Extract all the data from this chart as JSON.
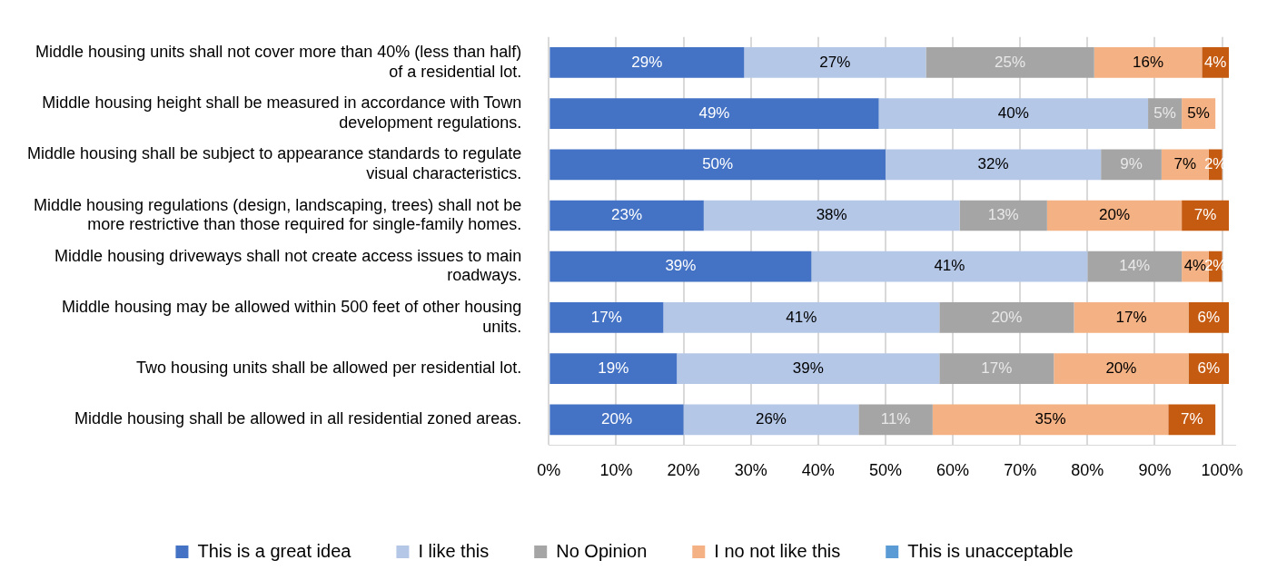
{
  "chart_data": {
    "type": "bar",
    "orientation": "horizontal",
    "stacked": true,
    "legend": "bottom",
    "grid": "x",
    "categories": [
      "Middle housing units shall not cover more than 40% (less than half) of a residential lot.",
      "Middle housing height shall be measured in accordance with Town development regulations.",
      "Middle housing shall be subject to appearance standards to regulate visual characteristics.",
      "Middle housing regulations (design, landscaping, trees) shall not be more restrictive than those required for single-family homes.",
      "Middle housing driveways shall not create access issues to main roadways.",
      "Middle housing may be allowed within 500 feet of other housing units.",
      "Two housing units shall be allowed per residential lot.",
      "Middle housing shall be allowed in all residential zoned areas."
    ],
    "series": [
      {
        "name": "This is a great idea",
        "color": "#4472c4",
        "values": [
          29,
          49,
          50,
          23,
          39,
          17,
          19,
          20
        ],
        "value_labels": [
          "29%",
          "49%",
          "50%",
          "23%",
          "39%",
          "17%",
          "19%",
          "20%"
        ]
      },
      {
        "name": "I like this",
        "color": "#b4c7e7",
        "values": [
          27,
          40,
          32,
          38,
          41,
          41,
          39,
          26
        ],
        "value_labels": [
          "27%",
          "40%",
          "32%",
          "38%",
          "41%",
          "41%",
          "39%",
          "26%"
        ]
      },
      {
        "name": "No Opinion",
        "color": "#a5a5a5",
        "values": [
          25,
          5,
          9,
          13,
          14,
          20,
          17,
          11
        ],
        "value_labels": [
          "25%",
          "5%",
          "9%",
          "13%",
          "14%",
          "20%",
          "17%",
          "11%"
        ]
      },
      {
        "name": "I no not like this",
        "color": "#f4b183",
        "values": [
          16,
          5,
          7,
          20,
          4,
          17,
          20,
          35
        ],
        "value_labels": [
          "16%",
          "5%",
          "7%",
          "20%",
          "4%",
          "17%",
          "20%",
          "35%"
        ]
      },
      {
        "color": "#c55a11",
        "values": [
          4,
          null,
          2,
          7,
          2,
          6,
          6,
          7
        ],
        "value_labels": [
          "4%",
          null,
          "2%",
          "7%",
          "2%",
          "6%",
          "6%",
          "7%"
        ]
      },
      {
        "name": "This is unacceptable",
        "color": "#5b9bd5",
        "values": [
          null,
          null,
          null,
          null,
          null,
          null,
          null,
          null
        ]
      }
    ],
    "xlim": [
      0,
      102
    ],
    "xticks": [
      {
        "value": 0,
        "label": "0%"
      },
      {
        "value": 10,
        "label": "10%"
      },
      {
        "value": 20,
        "label": "20%"
      },
      {
        "value": 30,
        "label": "30%"
      },
      {
        "value": 40,
        "label": "40%"
      },
      {
        "value": 50,
        "label": "50%"
      },
      {
        "value": 60,
        "label": "60%"
      },
      {
        "value": 70,
        "label": "70%"
      },
      {
        "value": 80,
        "label": "80%"
      },
      {
        "value": 90,
        "label": "90%"
      },
      {
        "value": 100,
        "label": "100%"
      }
    ]
  }
}
